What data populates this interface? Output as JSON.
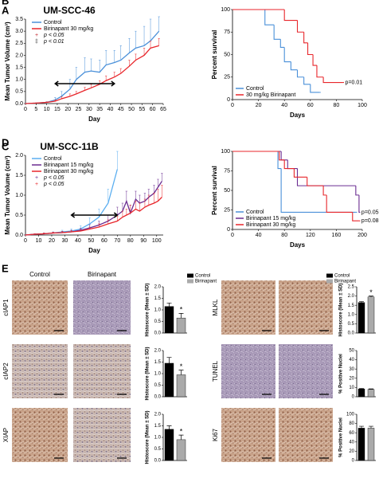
{
  "chart_data": [
    {
      "type": "line",
      "panel_label": "A",
      "title": "UM-SCC-46",
      "x_label": "Day",
      "y_label": "Mean Tumor Volume (cm³)",
      "x": [
        0,
        5,
        10,
        14,
        17,
        21,
        24,
        28,
        31,
        35,
        38,
        42,
        45,
        49,
        52,
        56,
        59,
        63
      ],
      "series": [
        {
          "name": "Control",
          "color": "#4a90d9",
          "values": [
            0,
            0.02,
            0.05,
            0.15,
            0.3,
            0.6,
            1.0,
            1.3,
            1.35,
            1.3,
            1.6,
            1.7,
            1.8,
            2.1,
            2.3,
            2.4,
            2.6,
            3.0
          ],
          "errors": [
            0,
            0.01,
            0.03,
            0.1,
            0.2,
            0.4,
            0.5,
            0.6,
            0.5,
            0.5,
            0.6,
            0.5,
            0.6,
            0.6,
            0.7,
            0.8,
            0.9,
            0.6
          ]
        },
        {
          "name": "Birinapant 30 mg/kg",
          "color": "#e8262b",
          "values": [
            0,
            0.02,
            0.05,
            0.1,
            0.2,
            0.3,
            0.4,
            0.55,
            0.65,
            0.8,
            0.95,
            1.1,
            1.25,
            1.55,
            1.8,
            2.0,
            2.3,
            2.4
          ],
          "errors": [
            0,
            0.01,
            0.02,
            0.05,
            0.08,
            0.1,
            0.1,
            0.12,
            0.15,
            0.15,
            0.2,
            0.2,
            0.2,
            0.25,
            0.25,
            0.3,
            0.3,
            0.3
          ]
        }
      ],
      "significance_legend": [
        {
          "symbol": "+",
          "text": "p < 0.05",
          "color": "#c0202a"
        },
        {
          "symbol": "‡",
          "text": "p < 0.01",
          "color": "#333333"
        }
      ],
      "treatment_period": [
        14,
        42
      ],
      "xlim": [
        0,
        65
      ],
      "xticks": [
        0,
        5,
        10,
        15,
        20,
        25,
        30,
        35,
        40,
        45,
        50,
        55,
        60,
        65
      ],
      "ylim": [
        0,
        3.5
      ],
      "yticks": [
        {
          "value": 0,
          "label": "0.0"
        },
        0.5,
        {
          "value": 1,
          "label": "1.0"
        },
        1.5,
        {
          "value": 2,
          "label": "2.0"
        },
        2.5,
        {
          "value": 3,
          "label": "3.0"
        },
        3.5
      ]
    },
    {
      "type": "survival",
      "panel_label": "B",
      "x_label": "Days",
      "y_label": "Percent survival",
      "series": [
        {
          "name": "Control",
          "color": "#4a90d9",
          "x": [
            0,
            25,
            32,
            37,
            40,
            45,
            50,
            55,
            60,
            67
          ],
          "values": [
            100,
            83,
            67,
            58,
            42,
            33,
            25,
            17,
            8,
            8
          ]
        },
        {
          "name": "30 mg/kg Birinapant",
          "color": "#e8262b",
          "x": [
            0,
            40,
            50,
            55,
            58,
            62,
            65,
            70,
            85
          ],
          "values": [
            100,
            88,
            75,
            63,
            50,
            38,
            25,
            19,
            19
          ],
          "annotation": "p=0.01"
        }
      ],
      "xlim": [
        0,
        100
      ],
      "xticks": [
        0,
        20,
        40,
        60,
        80,
        100
      ],
      "ylim": [
        0,
        100
      ],
      "yticks": [
        0,
        25,
        50,
        75,
        100
      ]
    },
    {
      "type": "line",
      "panel_label": "C",
      "title": "UM-SCC-11B",
      "x_label": "Day",
      "y_label": "Mean Tumor Volume (cm³)",
      "x": [
        0,
        7,
        14,
        21,
        28,
        35,
        42,
        49,
        56,
        63,
        70,
        74,
        77,
        80,
        84,
        87,
        91,
        94,
        98,
        101,
        104
      ],
      "series": [
        {
          "name": "Control",
          "color": "#5aaef0",
          "values": [
            0,
            0.02,
            0.03,
            0.05,
            0.08,
            0.1,
            0.15,
            0.28,
            0.45,
            0.8,
            1.65,
            null,
            null,
            null,
            null,
            null,
            null,
            null,
            null,
            null,
            null
          ],
          "errors": [
            0,
            0.01,
            0.02,
            0.03,
            0.04,
            0.05,
            0.08,
            0.15,
            0.2,
            0.35,
            0.45,
            null,
            null,
            null,
            null,
            null,
            null,
            null,
            null,
            null,
            null
          ]
        },
        {
          "name": "Birinapant 15 mg/kg",
          "color": "#6a2c91",
          "values": [
            0,
            0.02,
            0.03,
            0.05,
            0.06,
            0.08,
            0.12,
            0.18,
            0.25,
            0.35,
            0.5,
            0.6,
            0.85,
            0.55,
            0.9,
            0.8,
            0.85,
            0.95,
            1.05,
            1.2,
            1.35
          ],
          "errors": [
            0,
            0.01,
            0.02,
            0.02,
            0.03,
            0.04,
            0.05,
            0.08,
            0.1,
            0.15,
            0.2,
            0.2,
            0.25,
            0.2,
            0.2,
            0.2,
            0.2,
            0.2,
            0.2,
            0.2,
            0.2
          ]
        },
        {
          "name": "Birinapant 30 mg/kg",
          "color": "#e8262b",
          "values": [
            0,
            0.02,
            0.03,
            0.05,
            0.06,
            0.08,
            0.1,
            0.15,
            0.2,
            0.28,
            0.35,
            0.45,
            0.5,
            0.55,
            0.65,
            0.6,
            0.7,
            0.75,
            0.8,
            0.85,
            0.95
          ],
          "errors": [
            0,
            0.01,
            0.02,
            0.02,
            0.03,
            0.03,
            0.04,
            0.05,
            0.08,
            0.1,
            0.12,
            0.15,
            0.15,
            0.2,
            0.2,
            0.2,
            0.2,
            0.25,
            0.25,
            0.3,
            0.3
          ]
        }
      ],
      "significance_legend": [
        {
          "symbol": "+",
          "text": "p < 0.05",
          "color": "#6a2c91"
        },
        {
          "symbol": "+",
          "text": "p < 0.05",
          "color": "#e8262b"
        }
      ],
      "treatment_period": [
        35,
        70
      ],
      "xlim": [
        0,
        105
      ],
      "xticks": [
        0,
        10,
        20,
        30,
        40,
        50,
        60,
        70,
        80,
        90,
        100
      ],
      "ylim": [
        0,
        2
      ],
      "yticks": [
        {
          "value": 0,
          "label": "0.0"
        },
        0.5,
        {
          "value": 1,
          "label": "1.0"
        },
        1.5,
        {
          "value": 2,
          "label": "2.0"
        }
      ]
    },
    {
      "type": "survival",
      "panel_label": "D",
      "x_label": "Days",
      "y_label": "Percent survival",
      "series": [
        {
          "name": "Control",
          "color": "#4a90d9",
          "x": [
            0,
            70,
            75,
            190
          ],
          "values": [
            100,
            78,
            22,
            22
          ]
        },
        {
          "name": "Birinapant 15 mg/kg",
          "color": "#6a2c91",
          "x": [
            0,
            75,
            85,
            100,
            190,
            195
          ],
          "values": [
            100,
            89,
            78,
            56,
            44,
            22
          ],
          "annotation": "p=0.05"
        },
        {
          "name": "Birinapant 30 mg/kg",
          "color": "#e8262b",
          "x": [
            0,
            72,
            80,
            95,
            115,
            140,
            145,
            185,
            195
          ],
          "values": [
            100,
            89,
            78,
            67,
            56,
            44,
            22,
            11,
            11
          ],
          "annotation": "p=0.08"
        }
      ],
      "xlim": [
        0,
        200
      ],
      "xticks": [
        0,
        40,
        80,
        120,
        160,
        200
      ],
      "ylim": [
        0,
        100
      ],
      "yticks": [
        0,
        25,
        50,
        75,
        100
      ]
    },
    {
      "type": "bar",
      "y_label": "Histoscore (Mean ± SD)",
      "values": [
        1.15,
        0.65
      ],
      "errors": [
        0.15,
        0.2
      ],
      "colors": [
        "#000000",
        "#aaaaaa"
      ],
      "legend": [
        "Control",
        "Birinapant"
      ],
      "significance": "*",
      "ylim": [
        0,
        2
      ],
      "yticks": [
        {
          "value": 0,
          "label": "0.0"
        },
        0.5,
        {
          "value": 1,
          "label": "1.0"
        },
        1.5,
        {
          "value": 2,
          "label": "2.0"
        }
      ]
    },
    {
      "type": "bar",
      "y_label": "Histoscore (Mean ± SD)",
      "values": [
        1.45,
        0.95
      ],
      "errors": [
        0.25,
        0.2
      ],
      "colors": [
        "#000000",
        "#aaaaaa"
      ],
      "significance": "*",
      "ylim": [
        0,
        2
      ],
      "yticks": [
        {
          "value": 0,
          "label": "0.0"
        },
        0.5,
        {
          "value": 1,
          "label": "1.0"
        },
        1.5,
        {
          "value": 2,
          "label": "2.0"
        }
      ]
    },
    {
      "type": "bar",
      "y_label": "Histoscore (Mean ± SD)",
      "values": [
        1.35,
        0.9
      ],
      "errors": [
        0.15,
        0.2
      ],
      "colors": [
        "#000000",
        "#aaaaaa"
      ],
      "significance": "*",
      "ylim": [
        0,
        2
      ],
      "yticks": [
        {
          "value": 0,
          "label": "0.0"
        },
        0.5,
        {
          "value": 1,
          "label": "1.0"
        },
        1.5,
        {
          "value": 2,
          "label": "2.0"
        }
      ]
    },
    {
      "type": "bar",
      "y_label": "Histoscore (Mean ± SD)",
      "values": [
        1.65,
        1.95
      ],
      "errors": [
        0.05,
        0.05
      ],
      "colors": [
        "#000000",
        "#aaaaaa"
      ],
      "legend": [
        "Control",
        "Birinapant"
      ],
      "significance": "*",
      "ylim": [
        0,
        2.5
      ],
      "yticks": [
        {
          "value": 0,
          "label": "0.0"
        },
        0.5,
        {
          "value": 1,
          "label": "1.0"
        },
        1.5,
        {
          "value": 2,
          "label": "2.0"
        },
        2.5
      ]
    },
    {
      "type": "bar",
      "y_label": "% Positive Nuclei",
      "values": [
        8.5,
        8
      ],
      "errors": [
        0.5,
        0.5
      ],
      "colors": [
        "#000000",
        "#aaaaaa"
      ],
      "ylim": [
        0,
        50
      ],
      "yticks": [
        0,
        10,
        20,
        30,
        40,
        50
      ]
    },
    {
      "type": "bar",
      "y_label": "% Positive Nuclei",
      "values": [
        70,
        70
      ],
      "errors": [
        4,
        4
      ],
      "colors": [
        "#000000",
        "#aaaaaa"
      ],
      "ylim": [
        0,
        100
      ],
      "yticks": [
        0,
        20,
        40,
        60,
        80,
        100
      ]
    }
  ],
  "figure_e": {
    "label": "E",
    "columns": [
      "Control",
      "Birinapant"
    ],
    "rows_left": [
      "cIAP1",
      "cIAP2",
      "XIAP"
    ],
    "rows_right": [
      "MLKL",
      "TUNEL",
      "Ki67"
    ]
  }
}
